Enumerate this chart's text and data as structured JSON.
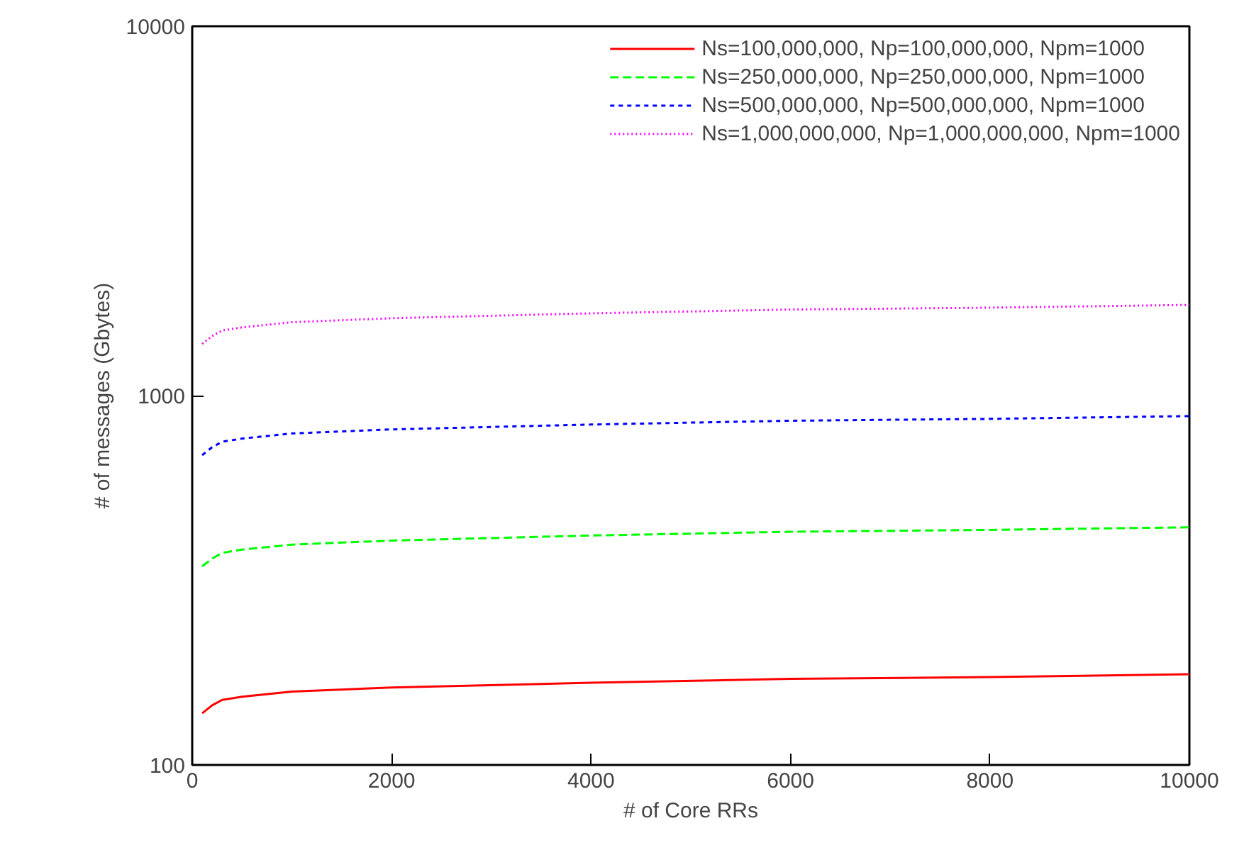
{
  "chart_data": {
    "type": "line",
    "xlabel": "# of Core RRs",
    "ylabel": "# of messages (Gbytes)",
    "x": [
      100,
      200,
      300,
      500,
      1000,
      2000,
      4000,
      6000,
      8000,
      10000
    ],
    "series": [
      {
        "name": "Ns=100,000,000, Np=100,000,000, Npm=1000",
        "color": "#ff0000",
        "line_style": "solid",
        "values": [
          138,
          145,
          150,
          153,
          158,
          162,
          167,
          171,
          173,
          176
        ]
      },
      {
        "name": "Ns=250,000,000, Np=250,000,000, Npm=1000",
        "color": "#00ff00",
        "line_style": "dashed",
        "values": [
          345,
          362,
          375,
          383,
          395,
          405,
          418,
          428,
          433,
          440
        ]
      },
      {
        "name": "Ns=500,000,000, Np=500,000,000, Npm=1000",
        "color": "#0000ff",
        "line_style": "short-dashed",
        "values": [
          690,
          725,
          750,
          765,
          790,
          810,
          835,
          855,
          865,
          880
        ]
      },
      {
        "name": "Ns=1,000,000,000, Np=1,000,000,000, Npm=1000",
        "color": "#ff00ff",
        "line_style": "dotted",
        "values": [
          1380,
          1450,
          1500,
          1530,
          1580,
          1620,
          1670,
          1710,
          1730,
          1760
        ]
      }
    ],
    "log": "y",
    "xlim": [
      0,
      10000
    ],
    "ylim": [
      100,
      10000
    ],
    "xticks": [
      0,
      2000,
      4000,
      6000,
      8000,
      10000
    ],
    "yticks": [
      100,
      1000,
      10000
    ],
    "grid": false,
    "legend": "top right"
  }
}
